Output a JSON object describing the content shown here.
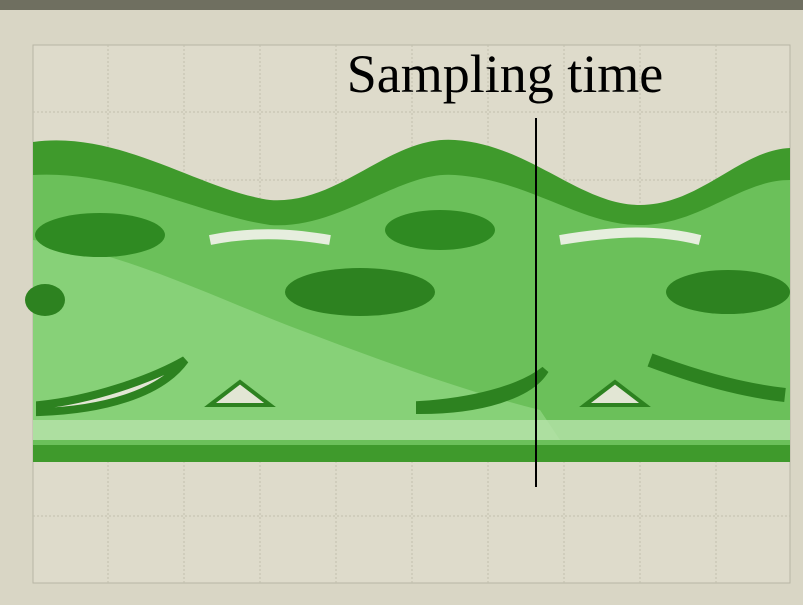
{
  "annotation": "Sampling time"
}
